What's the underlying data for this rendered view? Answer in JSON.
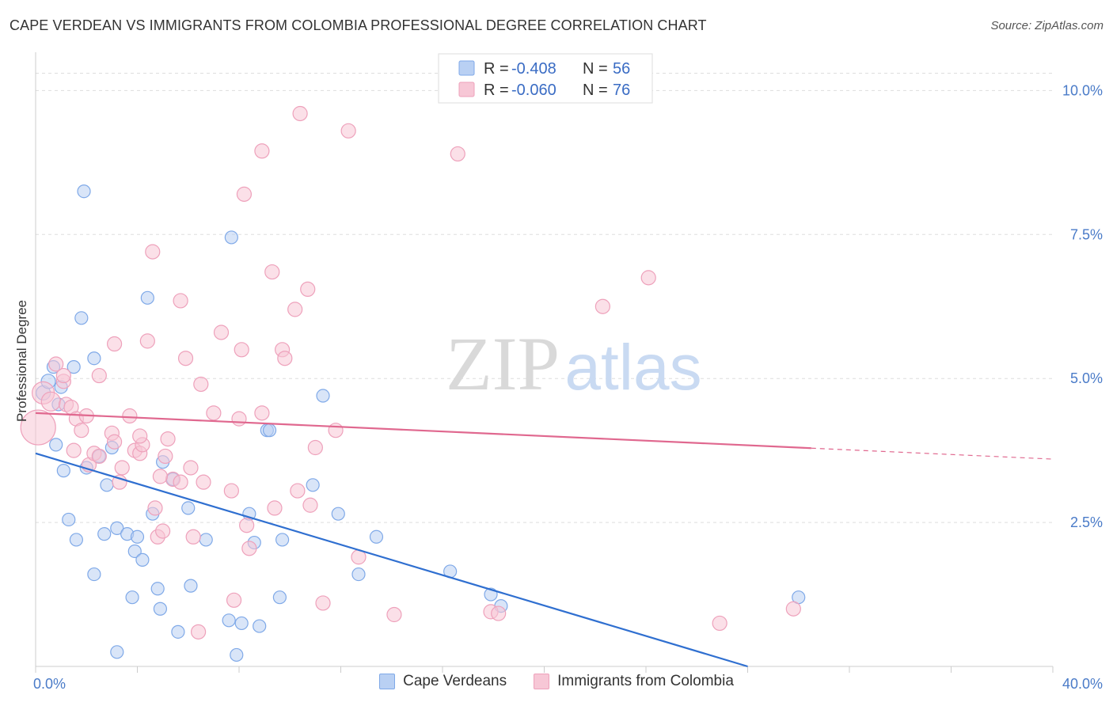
{
  "title": "CAPE VERDEAN VS IMMIGRANTS FROM COLOMBIA PROFESSIONAL DEGREE CORRELATION CHART",
  "source": "Source: ZipAtlas.com",
  "watermark": {
    "zip": "ZIP",
    "atlas": "atlas"
  },
  "chart_data": {
    "type": "scatter",
    "ylabel": "Professional Degree",
    "xlim": [
      0,
      40
    ],
    "ylim": [
      0,
      10.5
    ],
    "x_tick_labels": [
      {
        "value": 0,
        "label": "0.0%"
      },
      {
        "value": 40,
        "label": "40.0%"
      }
    ],
    "y_tick_labels": [
      {
        "value": 2.5,
        "label": "2.5%"
      },
      {
        "value": 5.0,
        "label": "5.0%"
      },
      {
        "value": 7.5,
        "label": "7.5%"
      },
      {
        "value": 10.0,
        "label": "10.0%"
      }
    ],
    "grid": true,
    "legend_position": "top-center",
    "series": [
      {
        "name": "Cape Verdeans",
        "color": "#7fa9e8",
        "fill": "#b9d0f3",
        "line_color": "#2f6fd0",
        "r": "-0.408",
        "n": "56",
        "trend": {
          "x0": 0,
          "y0": 3.7,
          "x1": 28,
          "y1": 0,
          "solid_until": 28
        },
        "points": [
          [
            0.3,
            4.75,
            9
          ],
          [
            0.5,
            4.95,
            9
          ],
          [
            0.9,
            4.55,
            8
          ],
          [
            0.7,
            5.2,
            8
          ],
          [
            1.0,
            4.85,
            8
          ],
          [
            1.9,
            8.25,
            8
          ],
          [
            1.8,
            6.05,
            8
          ],
          [
            1.5,
            5.2,
            8
          ],
          [
            2.3,
            5.35,
            8
          ],
          [
            0.8,
            3.85,
            8
          ],
          [
            1.1,
            3.4,
            8
          ],
          [
            2.0,
            3.45,
            8
          ],
          [
            2.5,
            3.65,
            8
          ],
          [
            3.0,
            3.8,
            8
          ],
          [
            2.8,
            3.15,
            8
          ],
          [
            1.3,
            2.55,
            8
          ],
          [
            1.6,
            2.2,
            8
          ],
          [
            2.7,
            2.3,
            8
          ],
          [
            3.2,
            2.4,
            8
          ],
          [
            3.6,
            2.3,
            8
          ],
          [
            4.0,
            2.25,
            8
          ],
          [
            3.9,
            2.0,
            8
          ],
          [
            4.2,
            1.85,
            8
          ],
          [
            2.3,
            1.6,
            8
          ],
          [
            3.8,
            1.2,
            8
          ],
          [
            4.8,
            1.35,
            8
          ],
          [
            4.9,
            1.0,
            8
          ],
          [
            3.2,
            0.25,
            8
          ],
          [
            5.6,
            0.6,
            8
          ],
          [
            6.1,
            1.4,
            8
          ],
          [
            6.0,
            2.75,
            8
          ],
          [
            5.4,
            3.25,
            8
          ],
          [
            5.0,
            3.55,
            8
          ],
          [
            4.6,
            2.65,
            8
          ],
          [
            6.7,
            2.2,
            8
          ],
          [
            4.4,
            6.4,
            8
          ],
          [
            7.7,
            7.45,
            8
          ],
          [
            7.6,
            0.8,
            8
          ],
          [
            7.9,
            0.2,
            8
          ],
          [
            8.1,
            0.75,
            8
          ],
          [
            8.8,
            0.7,
            8
          ],
          [
            8.4,
            2.65,
            8
          ],
          [
            8.6,
            2.15,
            8
          ],
          [
            9.6,
            1.2,
            8
          ],
          [
            9.7,
            2.2,
            8
          ],
          [
            9.1,
            4.1,
            8
          ],
          [
            10.9,
            3.15,
            8
          ],
          [
            11.3,
            4.7,
            8
          ],
          [
            11.9,
            2.65,
            8
          ],
          [
            12.7,
            1.6,
            8
          ],
          [
            13.4,
            2.25,
            8
          ],
          [
            16.3,
            1.65,
            8
          ],
          [
            17.9,
            1.25,
            8
          ],
          [
            18.3,
            1.05,
            8
          ],
          [
            30.0,
            1.2,
            8
          ],
          [
            9.2,
            4.1,
            8
          ]
        ]
      },
      {
        "name": "Immigrants from Colombia",
        "color": "#eea1bb",
        "fill": "#f7c7d6",
        "line_color": "#e0688f",
        "r": "-0.060",
        "n": "76",
        "trend": {
          "x0": 0,
          "y0": 4.4,
          "x1": 40,
          "y1": 3.6,
          "solid_until": 30.5
        },
        "points": [
          [
            0.1,
            4.15,
            22
          ],
          [
            0.3,
            4.75,
            14
          ],
          [
            0.6,
            4.6,
            12
          ],
          [
            0.8,
            5.25,
            9
          ],
          [
            1.1,
            4.95,
            9
          ],
          [
            1.2,
            4.55,
            9
          ],
          [
            1.4,
            4.5,
            9
          ],
          [
            1.1,
            5.05,
            9
          ],
          [
            1.6,
            4.3,
            9
          ],
          [
            1.8,
            4.1,
            9
          ],
          [
            2.0,
            4.35,
            9
          ],
          [
            1.5,
            3.75,
            9
          ],
          [
            2.1,
            3.5,
            9
          ],
          [
            2.3,
            3.7,
            9
          ],
          [
            2.5,
            3.65,
            9
          ],
          [
            2.5,
            5.05,
            9
          ],
          [
            3.1,
            5.6,
            9
          ],
          [
            3.0,
            4.05,
            9
          ],
          [
            3.1,
            3.9,
            9
          ],
          [
            3.4,
            3.45,
            9
          ],
          [
            3.3,
            3.2,
            9
          ],
          [
            3.7,
            4.35,
            9
          ],
          [
            3.9,
            3.75,
            9
          ],
          [
            4.1,
            3.7,
            9
          ],
          [
            4.2,
            3.85,
            9
          ],
          [
            4.1,
            4.0,
            9
          ],
          [
            4.4,
            5.65,
            9
          ],
          [
            4.6,
            7.2,
            9
          ],
          [
            4.7,
            2.75,
            9
          ],
          [
            4.8,
            2.25,
            9
          ],
          [
            5.0,
            2.35,
            9
          ],
          [
            5.1,
            3.65,
            9
          ],
          [
            5.2,
            3.95,
            9
          ],
          [
            5.4,
            3.25,
            9
          ],
          [
            5.7,
            3.2,
            9
          ],
          [
            5.7,
            6.35,
            9
          ],
          [
            5.9,
            5.35,
            9
          ],
          [
            6.1,
            3.45,
            9
          ],
          [
            6.2,
            2.25,
            9
          ],
          [
            6.5,
            4.9,
            9
          ],
          [
            6.6,
            3.2,
            9
          ],
          [
            6.4,
            0.6,
            9
          ],
          [
            7.0,
            4.4,
            9
          ],
          [
            7.3,
            5.8,
            9
          ],
          [
            7.7,
            3.05,
            9
          ],
          [
            7.8,
            1.15,
            9
          ],
          [
            8.0,
            4.3,
            9
          ],
          [
            8.1,
            5.5,
            9
          ],
          [
            8.3,
            2.45,
            9
          ],
          [
            8.4,
            2.05,
            9
          ],
          [
            8.2,
            8.2,
            9
          ],
          [
            8.9,
            8.95,
            9
          ],
          [
            8.9,
            4.4,
            9
          ],
          [
            9.3,
            6.85,
            9
          ],
          [
            9.4,
            2.75,
            9
          ],
          [
            9.7,
            5.5,
            9
          ],
          [
            9.8,
            5.35,
            9
          ],
          [
            10.2,
            6.2,
            9
          ],
          [
            10.3,
            3.05,
            9
          ],
          [
            10.4,
            9.6,
            9
          ],
          [
            10.7,
            6.55,
            9
          ],
          [
            10.8,
            2.8,
            9
          ],
          [
            11.0,
            3.8,
            9
          ],
          [
            11.3,
            1.1,
            9
          ],
          [
            12.3,
            9.3,
            9
          ],
          [
            12.7,
            1.9,
            9
          ],
          [
            14.1,
            0.9,
            9
          ],
          [
            16.6,
            8.9,
            9
          ],
          [
            17.9,
            0.95,
            9
          ],
          [
            22.3,
            6.25,
            9
          ],
          [
            24.1,
            6.75,
            9
          ],
          [
            26.9,
            0.75,
            9
          ],
          [
            29.8,
            1.0,
            9
          ],
          [
            18.2,
            0.92,
            9
          ],
          [
            11.8,
            4.1,
            9
          ],
          [
            4.9,
            3.3,
            9
          ]
        ]
      }
    ]
  },
  "legend": {
    "r_label": "R =",
    "n_label": "N ="
  }
}
